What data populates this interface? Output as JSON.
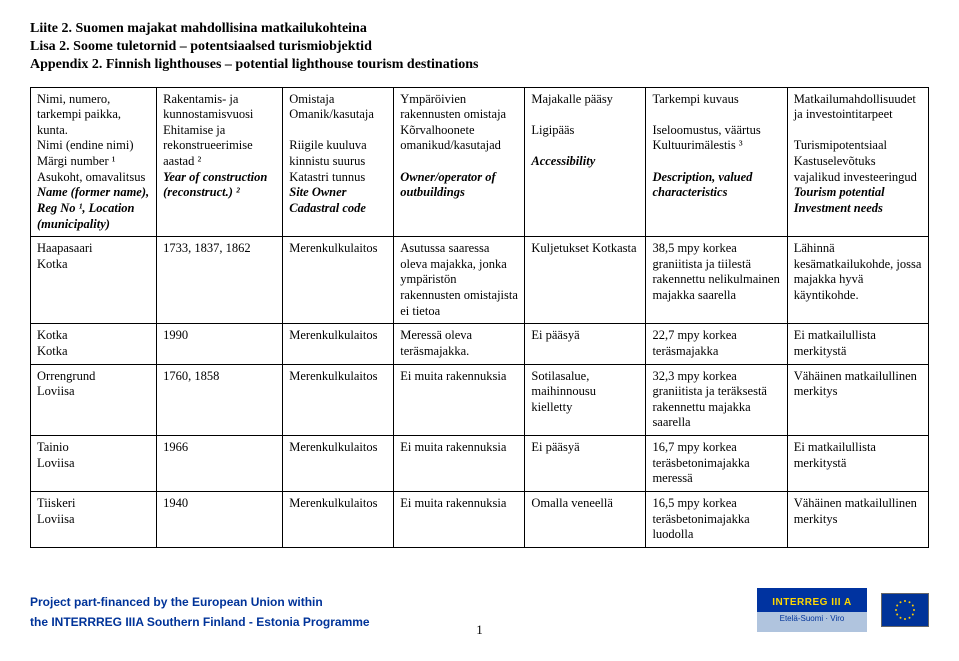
{
  "titles": {
    "fi": "Liite 2. Suomen majakat mahdollisina matkailukohteina",
    "et": "Lisa 2. Soome tuletornid – potentsiaalsed turismiobjektid",
    "en": "Appendix 2. Finnish lighthouses – potential lighthouse tourism destinations"
  },
  "headers": {
    "c1": {
      "fi": "Nimi, numero, tarkempi paikka, kunta.",
      "et": "Nimi (endine nimi) Märgi number ¹ Asukoht, omavalitsus",
      "en": "Name (former name), Reg No ¹, Location (municipality)"
    },
    "c2": {
      "fi": "Rakentamis- ja kunnostamisvuosi",
      "et": "Ehitamise ja rekonstrueerimise aastad ²",
      "en": "Year of construction (reconstruct.) ²"
    },
    "c3": {
      "fi": "Omistaja",
      "et": "Omanik/kasutaja\n\nRiigile kuuluva kinnistu suurus Katastri tunnus",
      "en": "Site Owner Cadastral code"
    },
    "c4": {
      "fi": "Ympäröivien rakennusten omistaja",
      "et": "Kõrvalhoonete omanikud/kasutajad",
      "en": "Owner/operator of outbuildings"
    },
    "c5": {
      "fi": "Majakalle pääsy",
      "et": "Ligipääs",
      "en": "Accessibility"
    },
    "c6": {
      "fi": "Tarkempi kuvaus",
      "et": "Iseloomustus, väärtus Kultuurimälestis ³",
      "en": "Description, valued characteristics"
    },
    "c7": {
      "fi": "Matkailumahdollisuudet ja investointitarpeet",
      "et": "Turismipotentsiaal Kastuselevõtuks vajalikud investeeringud",
      "en": "Tourism potential Investment needs"
    }
  },
  "rows": [
    {
      "name_top": "Haapasaari",
      "name_bottom": "Kotka",
      "year": "1733, 1837, 1862",
      "owner": "Merenkulkulaitos",
      "outbuildings": "Asutussa saaressa oleva majakka, jonka ympäristön rakennusten omistajista ei tietoa",
      "access": "Kuljetukset Kotkasta",
      "desc": "38,5 mpy korkea graniitista ja tiilestä rakennettu nelikulmainen majakka saarella",
      "potential": "Lähinnä kesämatkailukohde, jossa majakka hyvä käyntikohde."
    },
    {
      "name_top": "Kotka",
      "name_bottom": "Kotka",
      "year": "1990",
      "owner": "Merenkulkulaitos",
      "outbuildings": "Meressä oleva teräsmajakka.",
      "access": "Ei pääsyä",
      "desc": "22,7 mpy korkea teräsmajakka",
      "potential": "Ei matkailullista merkitystä"
    },
    {
      "name_top": "Orrengrund",
      "name_bottom": "Loviisa",
      "year": "1760, 1858",
      "owner": "Merenkulkulaitos",
      "outbuildings": "Ei muita rakennuksia",
      "access": "Sotilasalue, maihinnousu kielletty",
      "desc": "32,3 mpy korkea graniitista ja teräksestä rakennettu majakka saarella",
      "potential": "Vähäinen matkailullinen merkitys"
    },
    {
      "name_top": "Tainio",
      "name_bottom": "Loviisa",
      "year": "1966",
      "owner": "Merenkulkulaitos",
      "outbuildings": "Ei muita rakennuksia",
      "access": "Ei pääsyä",
      "desc": "16,7 mpy korkea teräsbetonimajakka meressä",
      "potential": "Ei matkailullista merkitystä"
    },
    {
      "name_top": "Tiiskeri",
      "name_bottom": "Loviisa",
      "year": "1940",
      "owner": "Merenkulkulaitos",
      "outbuildings": "Ei muita rakennuksia",
      "access": "Omalla veneellä",
      "desc": "16,5 mpy korkea teräsbetonimajakka luodolla",
      "potential": "Vähäinen matkailullinen merkitys"
    }
  ],
  "footer": {
    "line1": "Project part-financed by the European Union within",
    "line2": "the INTERRREG IIIA Southern Finland - Estonia Programme",
    "interreg_top": "INTERREG III A",
    "interreg_bottom": "Etelä-Suomi · Viro",
    "eu_stars": "★"
  },
  "page_number": "1"
}
